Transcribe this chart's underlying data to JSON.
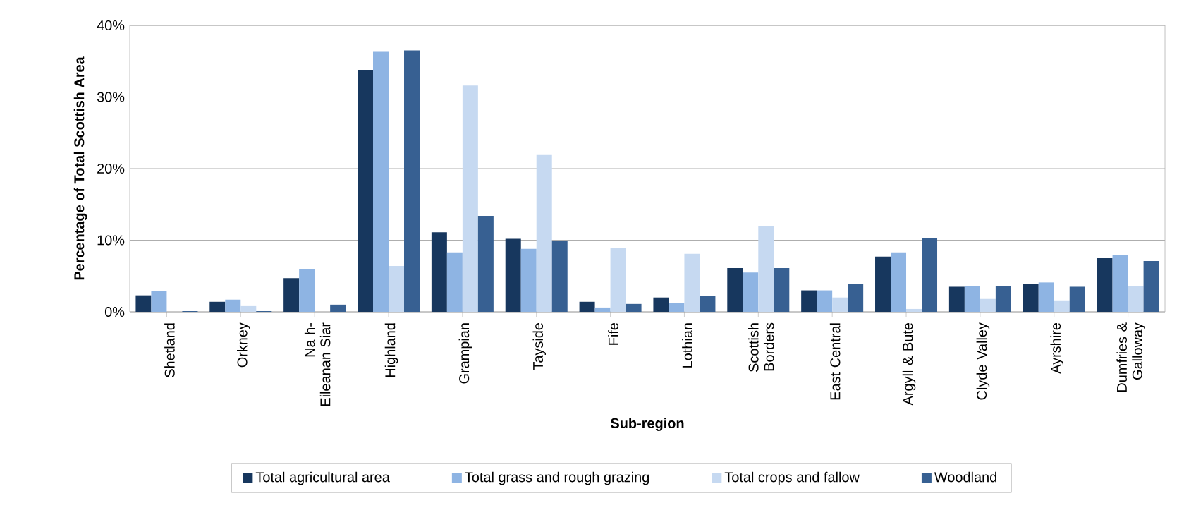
{
  "chart_data": {
    "type": "bar",
    "xlabel": "Sub-region",
    "ylabel": "Percentage of Total Scottish Area",
    "categories": [
      "Shetland",
      "Orkney",
      "Na h-Eileanan Siar",
      "Highland",
      "Grampian",
      "Tayside",
      "Fife",
      "Lothian",
      "Scottish Borders",
      "East Central",
      "Argyll & Bute",
      "Clyde Valley",
      "Ayrshire",
      "Dumfries & Galloway"
    ],
    "series": [
      {
        "name": "Total agricultural area",
        "color": "#17375e",
        "values": [
          2.3,
          1.4,
          4.7,
          33.8,
          11.1,
          10.2,
          1.4,
          2.0,
          6.1,
          3.0,
          7.7,
          3.5,
          3.9,
          7.5
        ]
      },
      {
        "name": "Total grass and rough grazing",
        "color": "#8eb4e3",
        "values": [
          2.9,
          1.7,
          5.9,
          36.4,
          8.3,
          8.8,
          0.6,
          1.2,
          5.5,
          3.0,
          8.3,
          3.6,
          4.1,
          7.9
        ]
      },
      {
        "name": "Total crops and fallow",
        "color": "#c6d9f1",
        "values": [
          0.0,
          0.8,
          0.0,
          6.4,
          31.6,
          21.9,
          8.9,
          8.1,
          12.0,
          2.0,
          0.4,
          1.8,
          1.6,
          3.6
        ]
      },
      {
        "name": "Woodland",
        "color": "#376092",
        "values": [
          0.1,
          0.1,
          1.0,
          36.5,
          13.4,
          9.9,
          1.1,
          2.2,
          6.1,
          3.9,
          10.3,
          3.6,
          3.5,
          7.1
        ]
      }
    ],
    "ylim": [
      0,
      40
    ],
    "yticks": [
      {
        "value": 0,
        "label": "0%"
      },
      {
        "value": 10,
        "label": "10%"
      },
      {
        "value": 20,
        "label": "20%"
      },
      {
        "value": 30,
        "label": "30%"
      },
      {
        "value": 40,
        "label": "40%"
      }
    ],
    "grid": "y",
    "legend": "bottom"
  }
}
